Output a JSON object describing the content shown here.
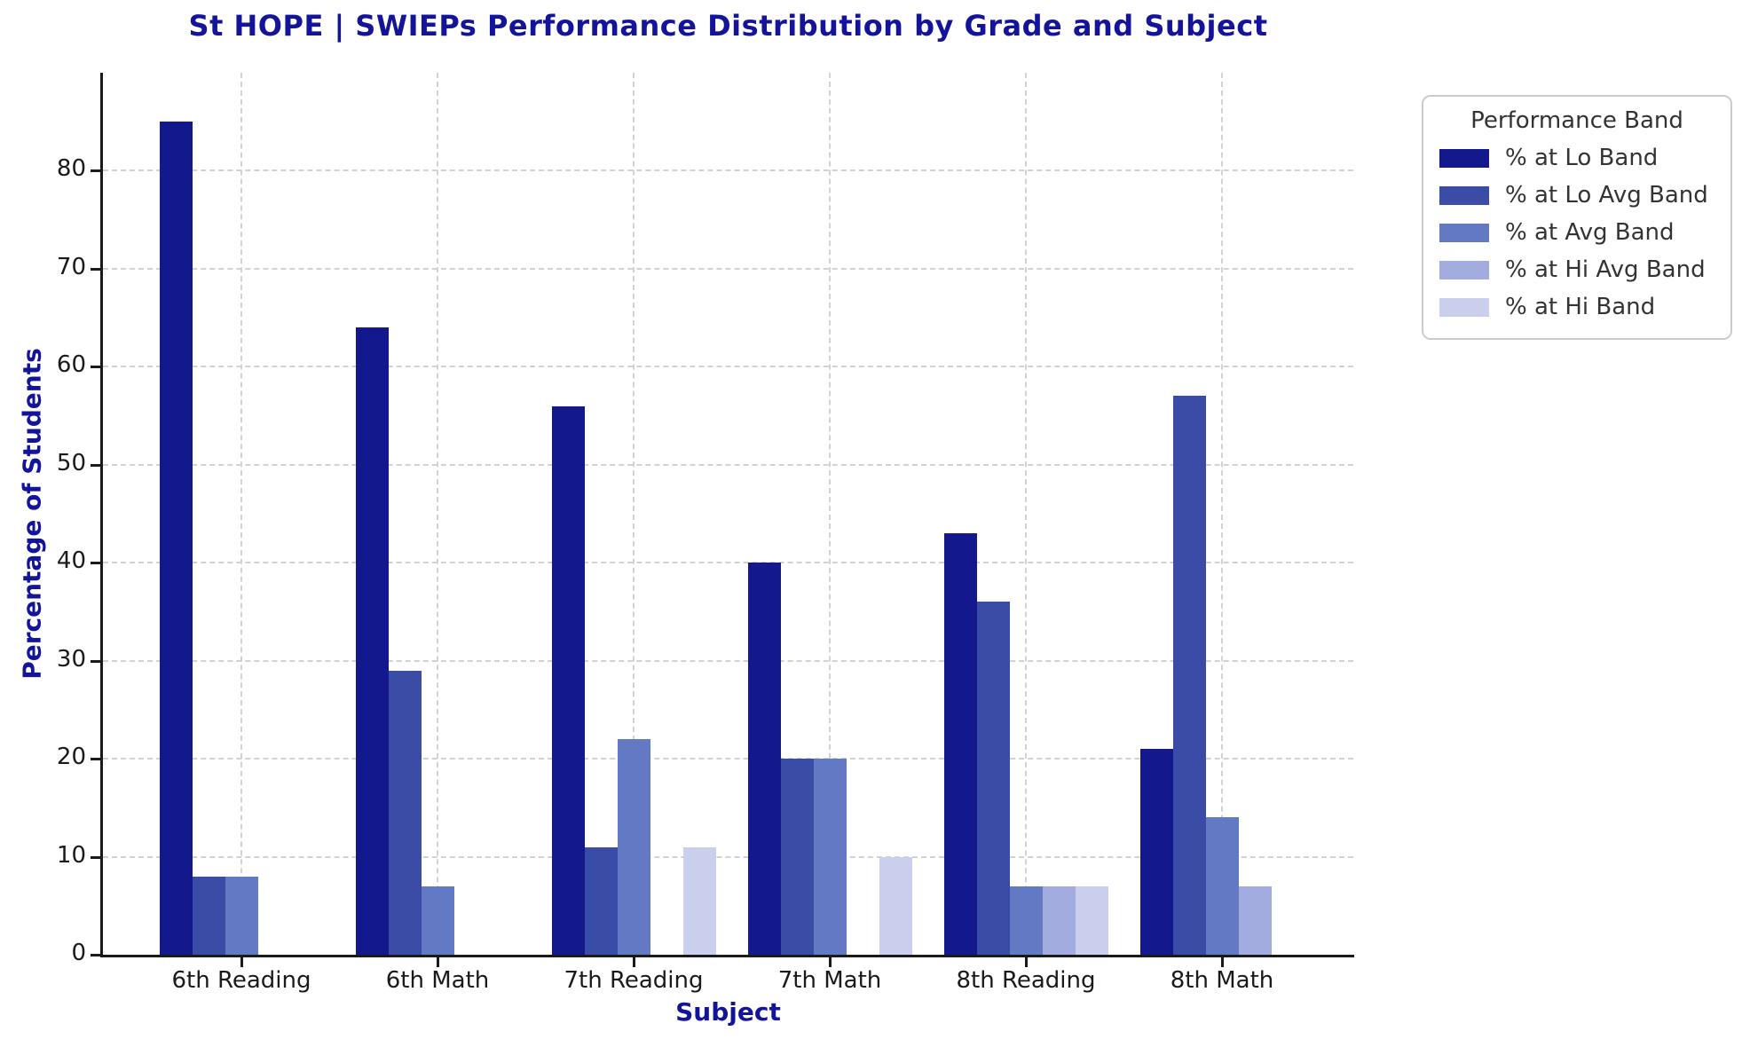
{
  "chart_data": {
    "type": "bar",
    "title": "St HOPE | SWIEPs Performance Distribution by Grade and Subject",
    "xlabel": "Subject",
    "ylabel": "Percentage of Students",
    "categories": [
      "6th Reading",
      "6th Math",
      "7th Reading",
      "7th Math",
      "8th Reading",
      "8th Math"
    ],
    "series": [
      {
        "name": "% at Lo Band",
        "color": "#13188D",
        "values": [
          85,
          64,
          56,
          40,
          43,
          21
        ]
      },
      {
        "name": "% at Lo Avg Band",
        "color": "#3A4CA5",
        "values": [
          8,
          29,
          11,
          20,
          36,
          57
        ]
      },
      {
        "name": "% at Avg Band",
        "color": "#6379C4",
        "values": [
          8,
          7,
          22,
          20,
          7,
          14
        ]
      },
      {
        "name": "% at Hi Avg Band",
        "color": "#A2ACDF",
        "values": [
          0,
          0,
          0,
          0,
          7,
          7
        ]
      },
      {
        "name": "% at Hi Band",
        "color": "#C9CFEC",
        "values": [
          0,
          0,
          11,
          10,
          7,
          0
        ]
      }
    ],
    "ylim": [
      0,
      90
    ],
    "yticks": [
      0,
      10,
      20,
      30,
      40,
      50,
      60,
      70,
      80
    ],
    "grid": "dashed-both-axes",
    "legend_title": "Performance Band",
    "legend_position": "upper-right-outside"
  },
  "colors": {
    "title": "#14149B",
    "axis_label": "#14149B",
    "tick_label": "#1a1a1a",
    "grid": "#d2d2d2",
    "spine": "#1a1a1a",
    "legend_border": "#cccccc",
    "legend_text": "#333333",
    "background": "#ffffff"
  }
}
